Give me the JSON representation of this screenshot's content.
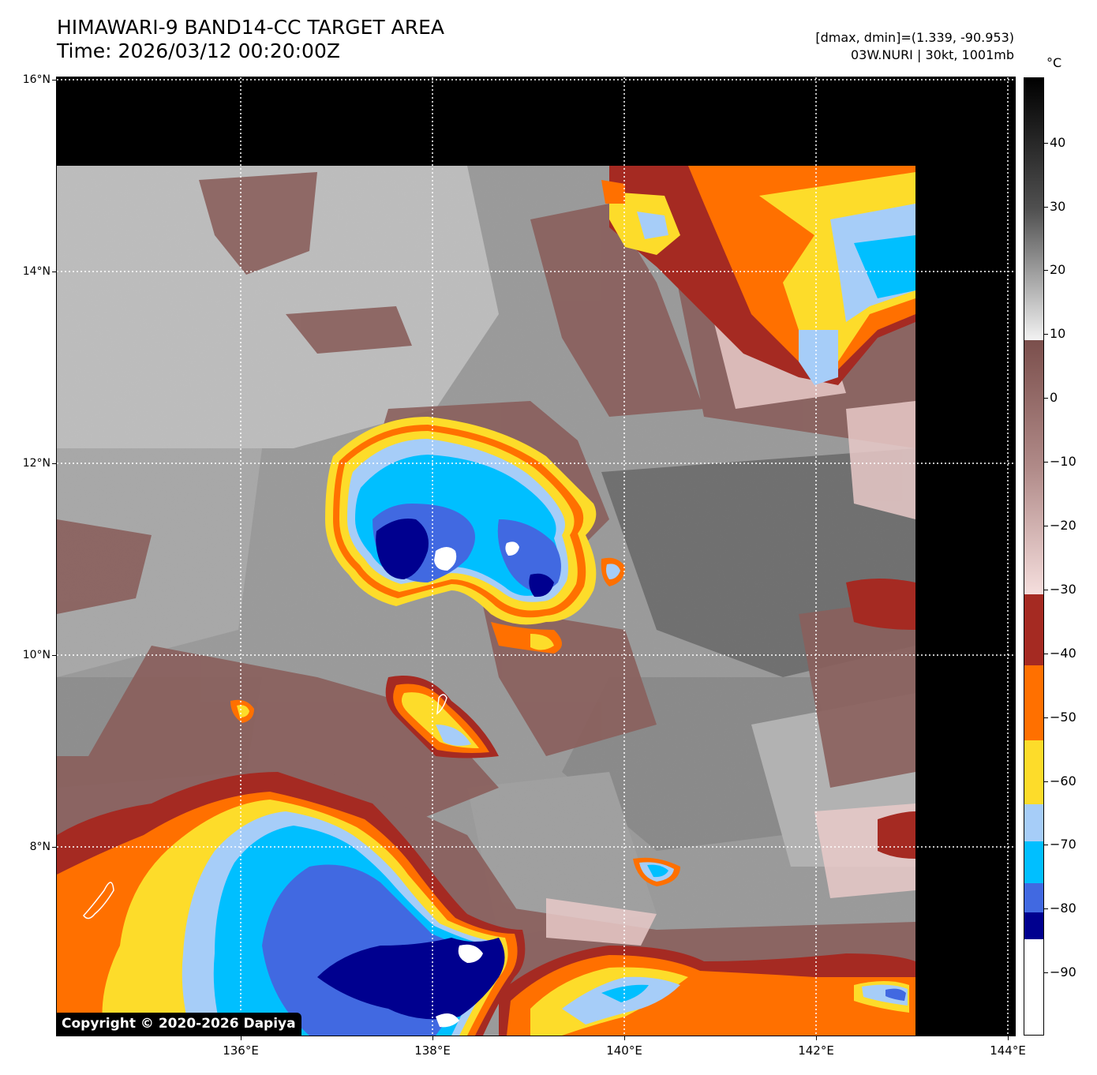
{
  "title": {
    "line1": "HIMAWARI-9 BAND14-CC TARGET AREA",
    "line2": "Time: 2026/03/12 00:20:00Z"
  },
  "info": {
    "line1": "[dmax, dmin]=(1.339, -90.953)",
    "line2": "03W.NURI | 30kt, 1001mb"
  },
  "copyright": "Copyright © 2020-2026 Dapiya",
  "latitude_labels": [
    "16°N",
    "14°N",
    "12°N",
    "10°N",
    "8°N"
  ],
  "longitude_labels": [
    "136°E",
    "138°E",
    "140°E",
    "142°E",
    "144°E"
  ],
  "colorbar": {
    "unit": "°C",
    "labels": [
      "40",
      "30",
      "20",
      "10",
      "0",
      "−10",
      "−20",
      "−30",
      "−40",
      "−50",
      "−60",
      "−70",
      "−80",
      "−90"
    ]
  },
  "colors": {
    "no_data": "#000000",
    "warm_gray": "#8c8c8c",
    "brown": "#8a5f5c",
    "pink": "#e8c9c8",
    "dark_red": "#a52a22",
    "orange": "#ff7000",
    "yellow": "#fddc2a",
    "light_blue": "#a6cdf8",
    "cyan": "#00bfff",
    "royal_blue": "#4169e1",
    "navy": "#00008f",
    "white": "#ffffff"
  }
}
